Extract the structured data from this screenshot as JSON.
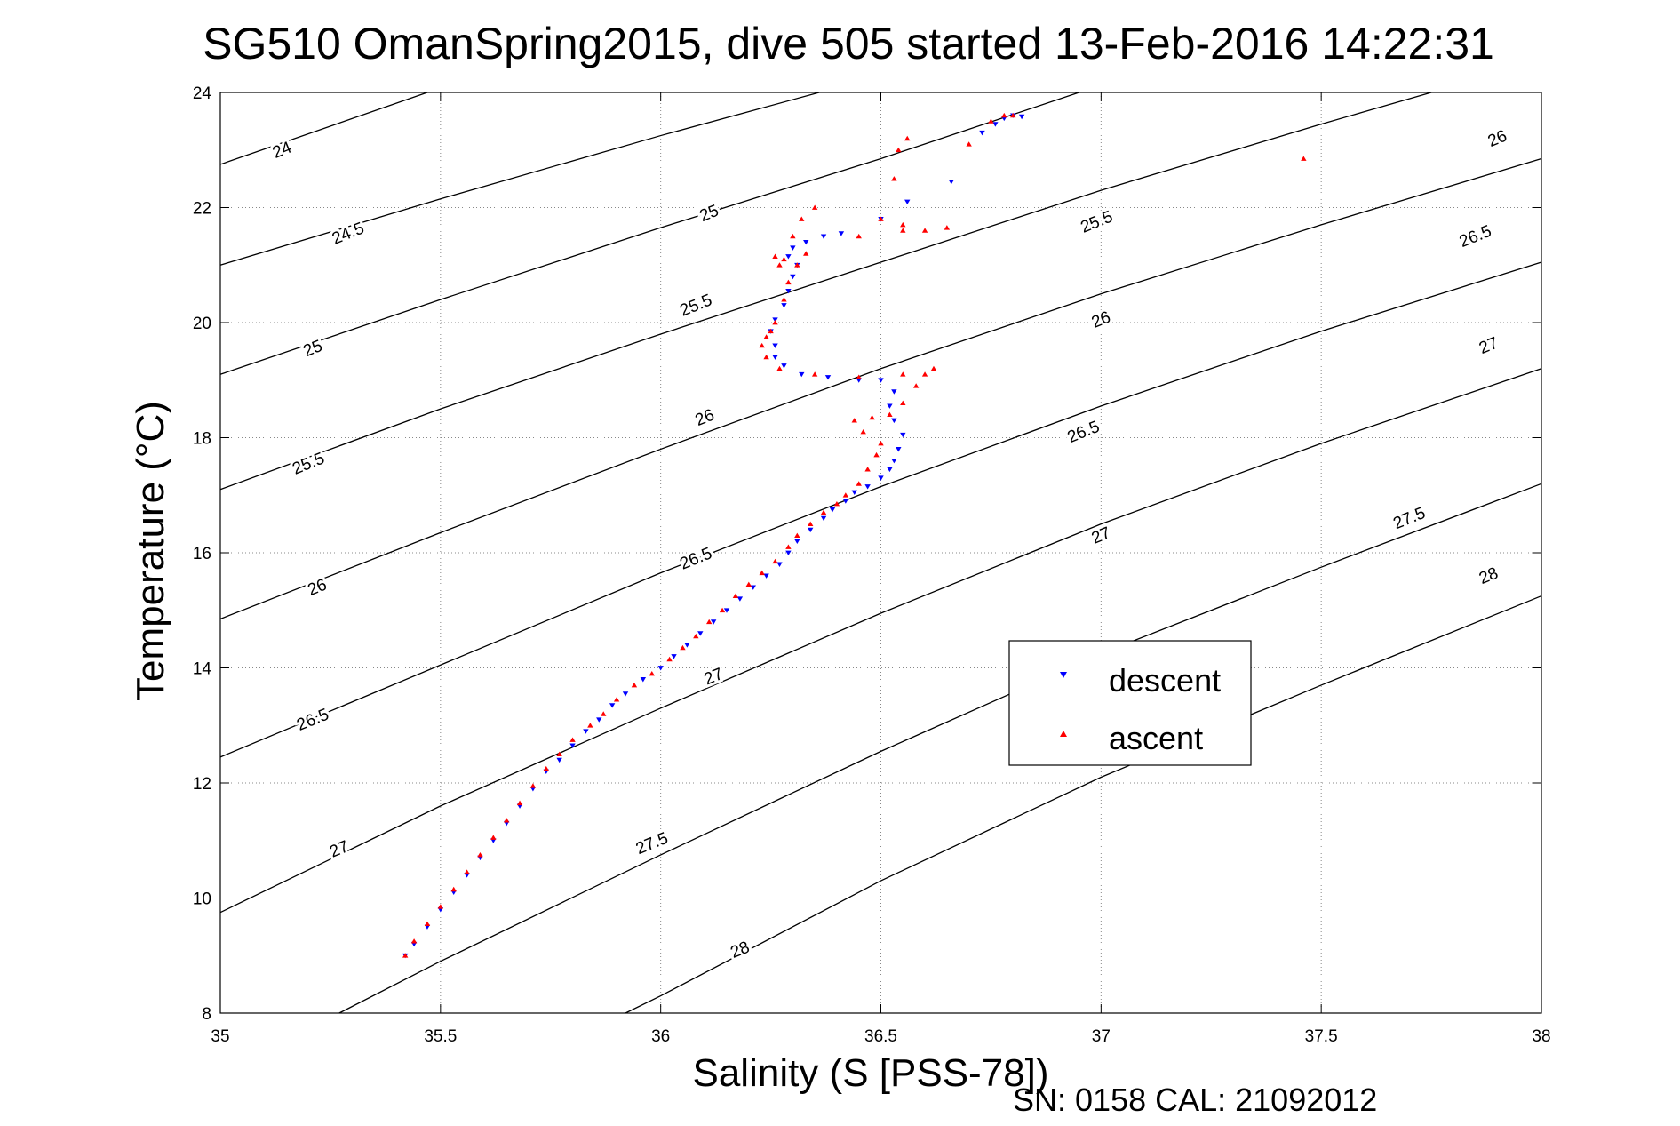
{
  "chart_data": {
    "type": "scatter",
    "title": "SG510 OmanSpring2015, dive 505 started 13-Feb-2016 14:22:31",
    "xlabel": "Salinity (S [PSS-78])",
    "ylabel": "Temperature (°C)",
    "footer": "SN: 0158  CAL: 21092012",
    "xlim": [
      35,
      38
    ],
    "ylim": [
      8,
      24
    ],
    "xticks": [
      35,
      35.5,
      36,
      36.5,
      37,
      37.5,
      38
    ],
    "xtick_labels": [
      "35",
      "35.5",
      "36",
      "36.5",
      "37",
      "37.5",
      "38"
    ],
    "yticks": [
      8,
      10,
      12,
      14,
      16,
      18,
      20,
      22,
      24
    ],
    "ytick_labels": [
      "8",
      "10",
      "12",
      "14",
      "16",
      "18",
      "20",
      "22",
      "24"
    ],
    "grid": true,
    "legend_position": "lower-right inside",
    "legend": [
      "descent",
      "ascent"
    ],
    "colors": {
      "descent": "#0000ff",
      "ascent": "#ff0000",
      "contour": "#000000",
      "grid": "#888888"
    },
    "contours": [
      {
        "level": 24,
        "label": "24",
        "points": [
          [
            35,
            22.75
          ],
          [
            35.47,
            24
          ]
        ]
      },
      {
        "level": 24.5,
        "label": "24.5",
        "points": [
          [
            35,
            21.0
          ],
          [
            35.5,
            22.15
          ],
          [
            36.0,
            23.25
          ],
          [
            36.36,
            24
          ]
        ]
      },
      {
        "level": 25,
        "label": "25",
        "points": [
          [
            35,
            19.1
          ],
          [
            35.5,
            20.4
          ],
          [
            36.0,
            21.65
          ],
          [
            36.5,
            22.85
          ],
          [
            36.95,
            24
          ]
        ]
      },
      {
        "level": 25.5,
        "label": "25.5",
        "points": [
          [
            35,
            17.1
          ],
          [
            35.5,
            18.5
          ],
          [
            36.0,
            19.8
          ],
          [
            36.5,
            21.05
          ],
          [
            37.0,
            22.3
          ],
          [
            37.5,
            23.45
          ],
          [
            37.75,
            24
          ]
        ]
      },
      {
        "level": 26,
        "label": "26",
        "points": [
          [
            35,
            14.85
          ],
          [
            35.5,
            16.35
          ],
          [
            36.0,
            17.8
          ],
          [
            36.5,
            19.2
          ],
          [
            37.0,
            20.5
          ],
          [
            37.5,
            21.7
          ],
          [
            38.0,
            22.85
          ]
        ]
      },
      {
        "level": 26.5,
        "label": "26.5",
        "points": [
          [
            35,
            12.45
          ],
          [
            35.5,
            14.05
          ],
          [
            36.0,
            15.65
          ],
          [
            36.5,
            17.15
          ],
          [
            37.0,
            18.55
          ],
          [
            37.5,
            19.85
          ],
          [
            38.0,
            21.05
          ]
        ]
      },
      {
        "level": 27,
        "label": "27",
        "points": [
          [
            35,
            9.75
          ],
          [
            35.5,
            11.6
          ],
          [
            36.0,
            13.3
          ],
          [
            36.5,
            14.95
          ],
          [
            37.0,
            16.5
          ],
          [
            37.5,
            17.9
          ],
          [
            38.0,
            19.2
          ]
        ]
      },
      {
        "level": 27.5,
        "label": "27.5",
        "points": [
          [
            35.27,
            8.0
          ],
          [
            35.5,
            8.9
          ],
          [
            36.0,
            10.75
          ],
          [
            36.5,
            12.55
          ],
          [
            37.0,
            14.25
          ],
          [
            37.5,
            15.75
          ],
          [
            38.0,
            17.2
          ]
        ]
      },
      {
        "level": 28,
        "label": "28",
        "points": [
          [
            35.92,
            8.0
          ],
          [
            36.0,
            8.3
          ],
          [
            36.5,
            10.3
          ],
          [
            37.0,
            12.1
          ],
          [
            37.5,
            13.7
          ],
          [
            38.0,
            15.25
          ]
        ]
      }
    ],
    "contour_labels": [
      {
        "text": "24",
        "x": 35.14,
        "y": 23.0
      },
      {
        "text": "24.5",
        "x": 35.29,
        "y": 21.55
      },
      {
        "text": "25",
        "x": 36.11,
        "y": 21.9
      },
      {
        "text": "25",
        "x": 35.21,
        "y": 19.55
      },
      {
        "text": "25.5",
        "x": 36.99,
        "y": 21.75
      },
      {
        "text": "25.5",
        "x": 36.08,
        "y": 20.3
      },
      {
        "text": "25.5",
        "x": 35.2,
        "y": 17.55
      },
      {
        "text": "26",
        "x": 37.9,
        "y": 23.2
      },
      {
        "text": "26",
        "x": 37.0,
        "y": 20.05
      },
      {
        "text": "26",
        "x": 36.1,
        "y": 18.35
      },
      {
        "text": "26",
        "x": 35.22,
        "y": 15.4
      },
      {
        "text": "26.5",
        "x": 37.85,
        "y": 21.5
      },
      {
        "text": "26.5",
        "x": 36.96,
        "y": 18.1
      },
      {
        "text": "26.5",
        "x": 36.08,
        "y": 15.9
      },
      {
        "text": "26.5",
        "x": 35.21,
        "y": 13.1
      },
      {
        "text": "27",
        "x": 37.88,
        "y": 19.6
      },
      {
        "text": "27",
        "x": 37.0,
        "y": 16.3
      },
      {
        "text": "27",
        "x": 36.12,
        "y": 13.85
      },
      {
        "text": "27",
        "x": 35.27,
        "y": 10.85
      },
      {
        "text": "27.5",
        "x": 37.7,
        "y": 16.6
      },
      {
        "text": "27.5",
        "x": 36.85,
        "y": 13.5
      },
      {
        "text": "27.5",
        "x": 35.98,
        "y": 10.95
      },
      {
        "text": "28",
        "x": 37.88,
        "y": 15.6
      },
      {
        "text": "28",
        "x": 36.18,
        "y": 9.1
      }
    ],
    "series": [
      {
        "name": "descent",
        "marker": "triangle-down",
        "color": "#0000ff",
        "points": [
          [
            35.42,
            9.0
          ],
          [
            35.44,
            9.2
          ],
          [
            35.47,
            9.5
          ],
          [
            35.5,
            9.8
          ],
          [
            35.53,
            10.1
          ],
          [
            35.56,
            10.4
          ],
          [
            35.59,
            10.7
          ],
          [
            35.62,
            11.0
          ],
          [
            35.65,
            11.3
          ],
          [
            35.68,
            11.6
          ],
          [
            35.71,
            11.9
          ],
          [
            35.74,
            12.2
          ],
          [
            35.77,
            12.4
          ],
          [
            35.8,
            12.65
          ],
          [
            35.83,
            12.9
          ],
          [
            35.86,
            13.1
          ],
          [
            35.89,
            13.35
          ],
          [
            35.92,
            13.55
          ],
          [
            35.96,
            13.8
          ],
          [
            36.0,
            14.0
          ],
          [
            36.03,
            14.2
          ],
          [
            36.06,
            14.4
          ],
          [
            36.09,
            14.6
          ],
          [
            36.12,
            14.8
          ],
          [
            36.15,
            15.0
          ],
          [
            36.18,
            15.2
          ],
          [
            36.21,
            15.4
          ],
          [
            36.24,
            15.6
          ],
          [
            36.27,
            15.8
          ],
          [
            36.29,
            16.0
          ],
          [
            36.31,
            16.2
          ],
          [
            36.34,
            16.4
          ],
          [
            36.37,
            16.6
          ],
          [
            36.39,
            16.75
          ],
          [
            36.42,
            16.9
          ],
          [
            36.44,
            17.05
          ],
          [
            36.47,
            17.15
          ],
          [
            36.5,
            17.3
          ],
          [
            36.52,
            17.45
          ],
          [
            36.53,
            17.6
          ],
          [
            36.54,
            17.8
          ],
          [
            36.55,
            18.05
          ],
          [
            36.53,
            18.3
          ],
          [
            36.52,
            18.55
          ],
          [
            36.53,
            18.8
          ],
          [
            36.5,
            19.0
          ],
          [
            36.45,
            19.0
          ],
          [
            36.38,
            19.05
          ],
          [
            36.32,
            19.1
          ],
          [
            36.28,
            19.25
          ],
          [
            36.26,
            19.4
          ],
          [
            36.26,
            19.6
          ],
          [
            36.25,
            19.85
          ],
          [
            36.26,
            20.05
          ],
          [
            36.28,
            20.3
          ],
          [
            36.29,
            20.55
          ],
          [
            36.3,
            20.8
          ],
          [
            36.31,
            21.0
          ],
          [
            36.29,
            21.15
          ],
          [
            36.3,
            21.3
          ],
          [
            36.33,
            21.4
          ],
          [
            36.37,
            21.5
          ],
          [
            36.41,
            21.55
          ],
          [
            36.5,
            21.8
          ],
          [
            36.56,
            22.1
          ],
          [
            36.66,
            22.45
          ],
          [
            36.73,
            23.3
          ],
          [
            36.76,
            23.45
          ],
          [
            36.78,
            23.55
          ],
          [
            36.8,
            23.6
          ],
          [
            36.82,
            23.58
          ]
        ]
      },
      {
        "name": "ascent",
        "marker": "triangle-up",
        "color": "#ff0000",
        "points": [
          [
            35.42,
            9.0
          ],
          [
            35.44,
            9.25
          ],
          [
            35.47,
            9.55
          ],
          [
            35.5,
            9.85
          ],
          [
            35.53,
            10.15
          ],
          [
            35.56,
            10.45
          ],
          [
            35.59,
            10.75
          ],
          [
            35.62,
            11.05
          ],
          [
            35.65,
            11.35
          ],
          [
            35.68,
            11.65
          ],
          [
            35.71,
            11.95
          ],
          [
            35.74,
            12.25
          ],
          [
            35.77,
            12.5
          ],
          [
            35.8,
            12.75
          ],
          [
            35.84,
            13.0
          ],
          [
            35.87,
            13.2
          ],
          [
            35.9,
            13.45
          ],
          [
            35.94,
            13.7
          ],
          [
            35.98,
            13.9
          ],
          [
            36.02,
            14.15
          ],
          [
            36.05,
            14.35
          ],
          [
            36.08,
            14.55
          ],
          [
            36.11,
            14.8
          ],
          [
            36.14,
            15.0
          ],
          [
            36.17,
            15.25
          ],
          [
            36.2,
            15.45
          ],
          [
            36.23,
            15.65
          ],
          [
            36.26,
            15.85
          ],
          [
            36.29,
            16.1
          ],
          [
            36.31,
            16.3
          ],
          [
            36.34,
            16.5
          ],
          [
            36.37,
            16.7
          ],
          [
            36.4,
            16.85
          ],
          [
            36.42,
            17.0
          ],
          [
            36.45,
            17.2
          ],
          [
            36.47,
            17.45
          ],
          [
            36.49,
            17.7
          ],
          [
            36.5,
            17.9
          ],
          [
            36.46,
            18.1
          ],
          [
            36.44,
            18.3
          ],
          [
            36.48,
            18.35
          ],
          [
            36.52,
            18.4
          ],
          [
            36.55,
            18.6
          ],
          [
            36.58,
            18.9
          ],
          [
            36.6,
            19.1
          ],
          [
            36.62,
            19.2
          ],
          [
            36.55,
            19.1
          ],
          [
            36.45,
            19.05
          ],
          [
            36.35,
            19.1
          ],
          [
            36.27,
            19.2
          ],
          [
            36.24,
            19.4
          ],
          [
            36.23,
            19.6
          ],
          [
            36.24,
            19.75
          ],
          [
            36.25,
            19.85
          ],
          [
            36.26,
            20.0
          ],
          [
            36.28,
            20.4
          ],
          [
            36.29,
            20.7
          ],
          [
            36.27,
            21.0
          ],
          [
            36.26,
            21.15
          ],
          [
            36.28,
            21.1
          ],
          [
            36.31,
            21.0
          ],
          [
            36.33,
            21.2
          ],
          [
            36.3,
            21.5
          ],
          [
            36.32,
            21.8
          ],
          [
            36.35,
            22.0
          ],
          [
            36.45,
            21.5
          ],
          [
            36.5,
            21.8
          ],
          [
            36.55,
            21.6
          ],
          [
            36.6,
            21.6
          ],
          [
            36.65,
            21.65
          ],
          [
            36.55,
            21.7
          ],
          [
            36.53,
            22.5
          ],
          [
            36.54,
            23.0
          ],
          [
            36.56,
            23.2
          ],
          [
            36.7,
            23.1
          ],
          [
            36.75,
            23.5
          ],
          [
            36.78,
            23.6
          ],
          [
            36.8,
            23.6
          ],
          [
            37.46,
            22.85
          ]
        ]
      }
    ]
  }
}
